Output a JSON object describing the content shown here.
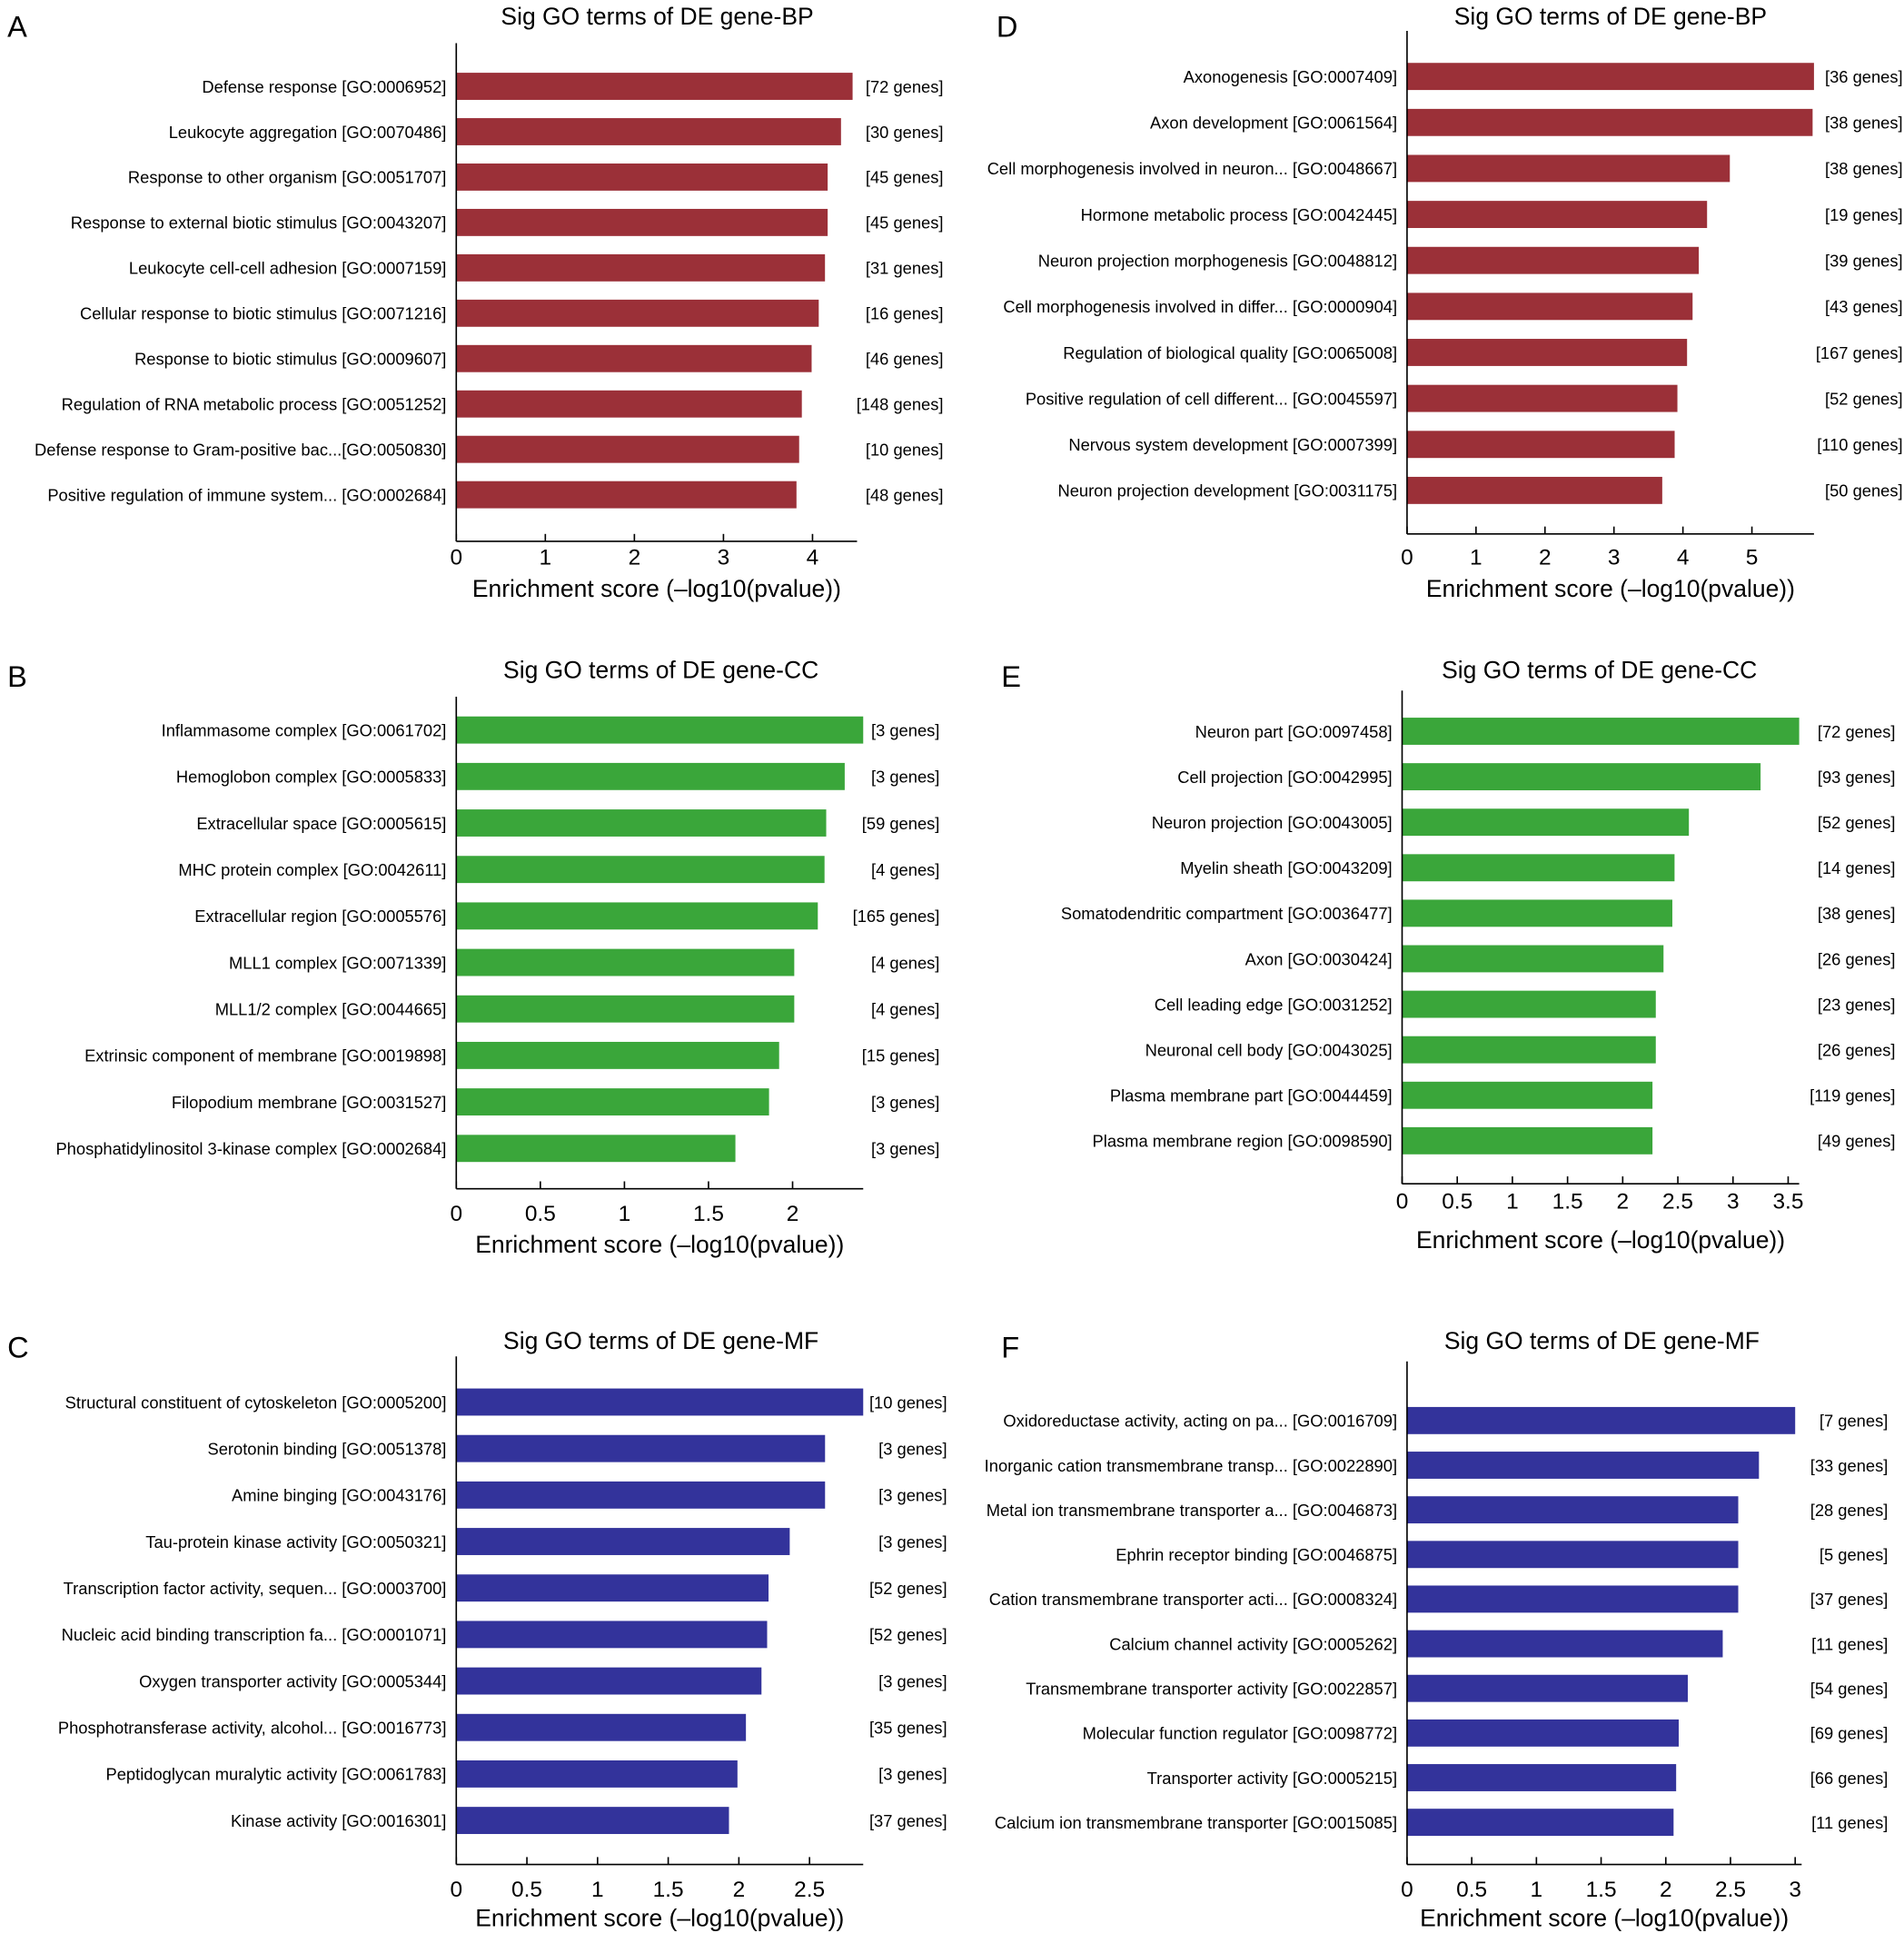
{
  "chart_data": [
    {
      "type": "bar",
      "orientation": "horizontal",
      "panel": "A",
      "title": "Sig GO terms of DE gene-BP",
      "xlabel": "Enrichment score (–log10(pvalue))",
      "ylabel": "",
      "color": "#9b3038",
      "xlim": [
        0,
        4.5
      ],
      "xticks": [
        "0",
        "1",
        "2",
        "3",
        "4"
      ],
      "xtick_values": [
        0,
        1,
        2,
        3,
        4
      ],
      "grid": false,
      "categories": [
        "Defense response [GO:0006952]",
        "Leukocyte aggregation [GO:0070486]",
        "Response to other organism [GO:0051707]",
        "Response to external biotic stimulus [GO:0043207]",
        "Leukocyte cell-cell adhesion [GO:0007159]",
        "Cellular response to biotic stimulus [GO:0071216]",
        "Response to biotic stimulus [GO:0009607]",
        "Regulation of RNA metabolic process [GO:0051252]",
        "Defense response to Gram-positive bac...[GO:0050830]",
        "Positive regulation of immune system... [GO:0002684]"
      ],
      "values": [
        4.45,
        4.32,
        4.17,
        4.17,
        4.14,
        4.07,
        3.99,
        3.88,
        3.85,
        3.82
      ],
      "labels": [
        "[72 genes]",
        "[30 genes]",
        "[45 genes]",
        "[45 genes]",
        "[31 genes]",
        "[16 genes]",
        "[46 genes]",
        "[148 genes]",
        "[10 genes]",
        "[48 genes]"
      ]
    },
    {
      "type": "bar",
      "orientation": "horizontal",
      "panel": "B",
      "title": "Sig GO terms of DE gene-CC",
      "xlabel": "Enrichment score (–log10(pvalue))",
      "ylabel": "",
      "color": "#3aa63a",
      "xlim": [
        0,
        2.42
      ],
      "xticks": [
        "0",
        "0.5",
        "1",
        "1.5",
        "2"
      ],
      "xtick_values": [
        0,
        0.5,
        1,
        1.5,
        2
      ],
      "grid": false,
      "categories": [
        "Inflammasome complex [GO:0061702]",
        "Hemoglobon complex [GO:0005833]",
        "Extracellular space [GO:0005615]",
        "MHC protein complex [GO:0042611]",
        "Extracellular region [GO:0005576]",
        "MLL1 complex [GO:0071339]",
        "MLL1/2 complex [GO:0044665]",
        "Extrinsic component of membrane [GO:0019898]",
        "Filopodium membrane [GO:0031527]",
        "Phosphatidylinositol 3-kinase complex [GO:0002684]"
      ],
      "values": [
        2.42,
        2.31,
        2.2,
        2.19,
        2.15,
        2.01,
        2.01,
        1.92,
        1.86,
        1.66
      ],
      "labels": [
        "[3 genes]",
        "[3 genes]",
        "[59 genes]",
        "[4 genes]",
        "[165 genes]",
        "[4 genes]",
        "[4 genes]",
        "[15 genes]",
        "[3 genes]",
        "[3 genes]"
      ]
    },
    {
      "type": "bar",
      "orientation": "horizontal",
      "panel": "C",
      "title": "Sig GO terms of DE gene-MF",
      "xlabel": "Enrichment score (–log10(pvalue))",
      "ylabel": "",
      "color": "#33339b",
      "xlim": [
        0,
        2.88
      ],
      "xticks": [
        "0",
        "0.5",
        "1",
        "1.5",
        "2",
        "2.5"
      ],
      "xtick_values": [
        0,
        0.5,
        1,
        1.5,
        2,
        2.5
      ],
      "grid": false,
      "categories": [
        "Structural constituent of cytoskeleton [GO:0005200]",
        "Serotonin binding [GO:0051378]",
        "Amine binging [GO:0043176]",
        "Tau-protein kinase activity [GO:0050321]",
        "Transcription factor activity, sequen... [GO:0003700]",
        "Nucleic acid binding transcription fa... [GO:0001071]",
        "Oxygen transporter activity [GO:0005344]",
        "Phosphotransferase activity, alcohol... [GO:0016773]",
        "Peptidoglycan muralytic activity [GO:0061783]",
        "Kinase activity [GO:0016301]"
      ],
      "values": [
        2.88,
        2.61,
        2.61,
        2.36,
        2.21,
        2.2,
        2.16,
        2.05,
        1.99,
        1.93
      ],
      "labels": [
        "[10 genes]",
        "[3 genes]",
        "[3 genes]",
        "[3 genes]",
        "[52 genes]",
        "[52 genes]",
        "[3 genes]",
        "[35 genes]",
        "[3 genes]",
        "[37 genes]"
      ]
    },
    {
      "type": "bar",
      "orientation": "horizontal",
      "panel": "D",
      "title": "Sig GO terms of DE gene-BP",
      "xlabel": "Enrichment score (–log10(pvalue))",
      "ylabel": "",
      "color": "#9b3038",
      "xlim": [
        0,
        5.9
      ],
      "xticks": [
        "0",
        "1",
        "2",
        "3",
        "4",
        "5"
      ],
      "xtick_values": [
        0,
        1,
        2,
        3,
        4,
        5
      ],
      "grid": false,
      "categories": [
        "Axonogenesis [GO:0007409]",
        "Axon development [GO:0061564]",
        "Cell morphogenesis involved in neuron... [GO:0048667]",
        "Hormone metabolic process [GO:0042445]",
        "Neuron projection morphogenesis [GO:0048812]",
        "Cell morphogenesis involved in differ... [GO:0000904]",
        "Regulation of biological quality [GO:0065008]",
        "Positive regulation of cell different... [GO:0045597]",
        "Nervous system development [GO:0007399]",
        "Neuron projection development [GO:0031175]"
      ],
      "values": [
        5.9,
        5.88,
        4.68,
        4.35,
        4.23,
        4.14,
        4.06,
        3.92,
        3.88,
        3.7
      ],
      "labels": [
        "[36 genes]",
        "[38 genes]",
        "[38 genes]",
        "[19 genes]",
        "[39 genes]",
        "[43 genes]",
        "[167 genes]",
        "[52 genes]",
        "[110 genes]",
        "[50 genes]"
      ]
    },
    {
      "type": "bar",
      "orientation": "horizontal",
      "panel": "E",
      "title": "Sig GO terms of DE gene-CC",
      "xlabel": "Enrichment score (–log10(pvalue))",
      "ylabel": "",
      "color": "#3aa63a",
      "xlim": [
        0,
        3.6
      ],
      "xticks": [
        "0",
        "0.5",
        "1",
        "1.5",
        "2",
        "2.5",
        "3",
        "3.5"
      ],
      "xtick_values": [
        0,
        0.5,
        1,
        1.5,
        2,
        2.5,
        3,
        3.5
      ],
      "grid": false,
      "categories": [
        "Neuron part [GO:0097458]",
        "Cell projection [GO:0042995]",
        "Neuron projection [GO:0043005]",
        "Myelin sheath [GO:0043209]",
        "Somatodendritic compartment [GO:0036477]",
        "Axon [GO:0030424]",
        "Cell leading edge [GO:0031252]",
        "Neuronal cell body [GO:0043025]",
        "Plasma membrane part [GO:0044459]",
        "Plasma membrane region [GO:0098590]"
      ],
      "values": [
        3.6,
        3.25,
        2.6,
        2.47,
        2.45,
        2.37,
        2.3,
        2.3,
        2.27,
        2.27
      ],
      "labels": [
        "[72 genes]",
        "[93 genes]",
        "[52 genes]",
        "[14 genes]",
        "[38 genes]",
        "[26 genes]",
        "[23 genes]",
        "[26 genes]",
        "[119 genes]",
        "[49 genes]"
      ]
    },
    {
      "type": "bar",
      "orientation": "horizontal",
      "panel": "F",
      "title": "Sig GO terms of DE gene-MF",
      "xlabel": "Enrichment score (–log10(pvalue))",
      "ylabel": "",
      "color": "#33339b",
      "xlim": [
        0,
        3.05
      ],
      "xticks": [
        "0",
        "0.5",
        "1",
        "1.5",
        "2",
        "2.5",
        "3"
      ],
      "xtick_values": [
        0,
        0.5,
        1,
        1.5,
        2,
        2.5,
        3
      ],
      "grid": false,
      "categories": [
        "Oxidoreductase activity, acting on pa... [GO:0016709]",
        "Inorganic cation transmembrane transp... [GO:0022890]",
        "Metal ion transmembrane transporter a... [GO:0046873]",
        "Ephrin receptor binding [GO:0046875]",
        "Cation transmembrane transporter acti... [GO:0008324]",
        "Calcium channel activity [GO:0005262]",
        "Transmembrane transporter activity [GO:0022857]",
        "Molecular function regulator [GO:0098772]",
        "Transporter activity [GO:0005215]",
        "Calcium ion transmembrane transporter [GO:0015085]"
      ],
      "values": [
        3.0,
        2.72,
        2.56,
        2.56,
        2.56,
        2.44,
        2.17,
        2.1,
        2.08,
        2.06
      ],
      "labels": [
        "[7 genes]",
        "[33 genes]",
        "[28 genes]",
        "[5 genes]",
        "[37 genes]",
        "[11 genes]",
        "[54 genes]",
        "[69 genes]",
        "[66 genes]",
        "[11 genes]"
      ]
    }
  ]
}
